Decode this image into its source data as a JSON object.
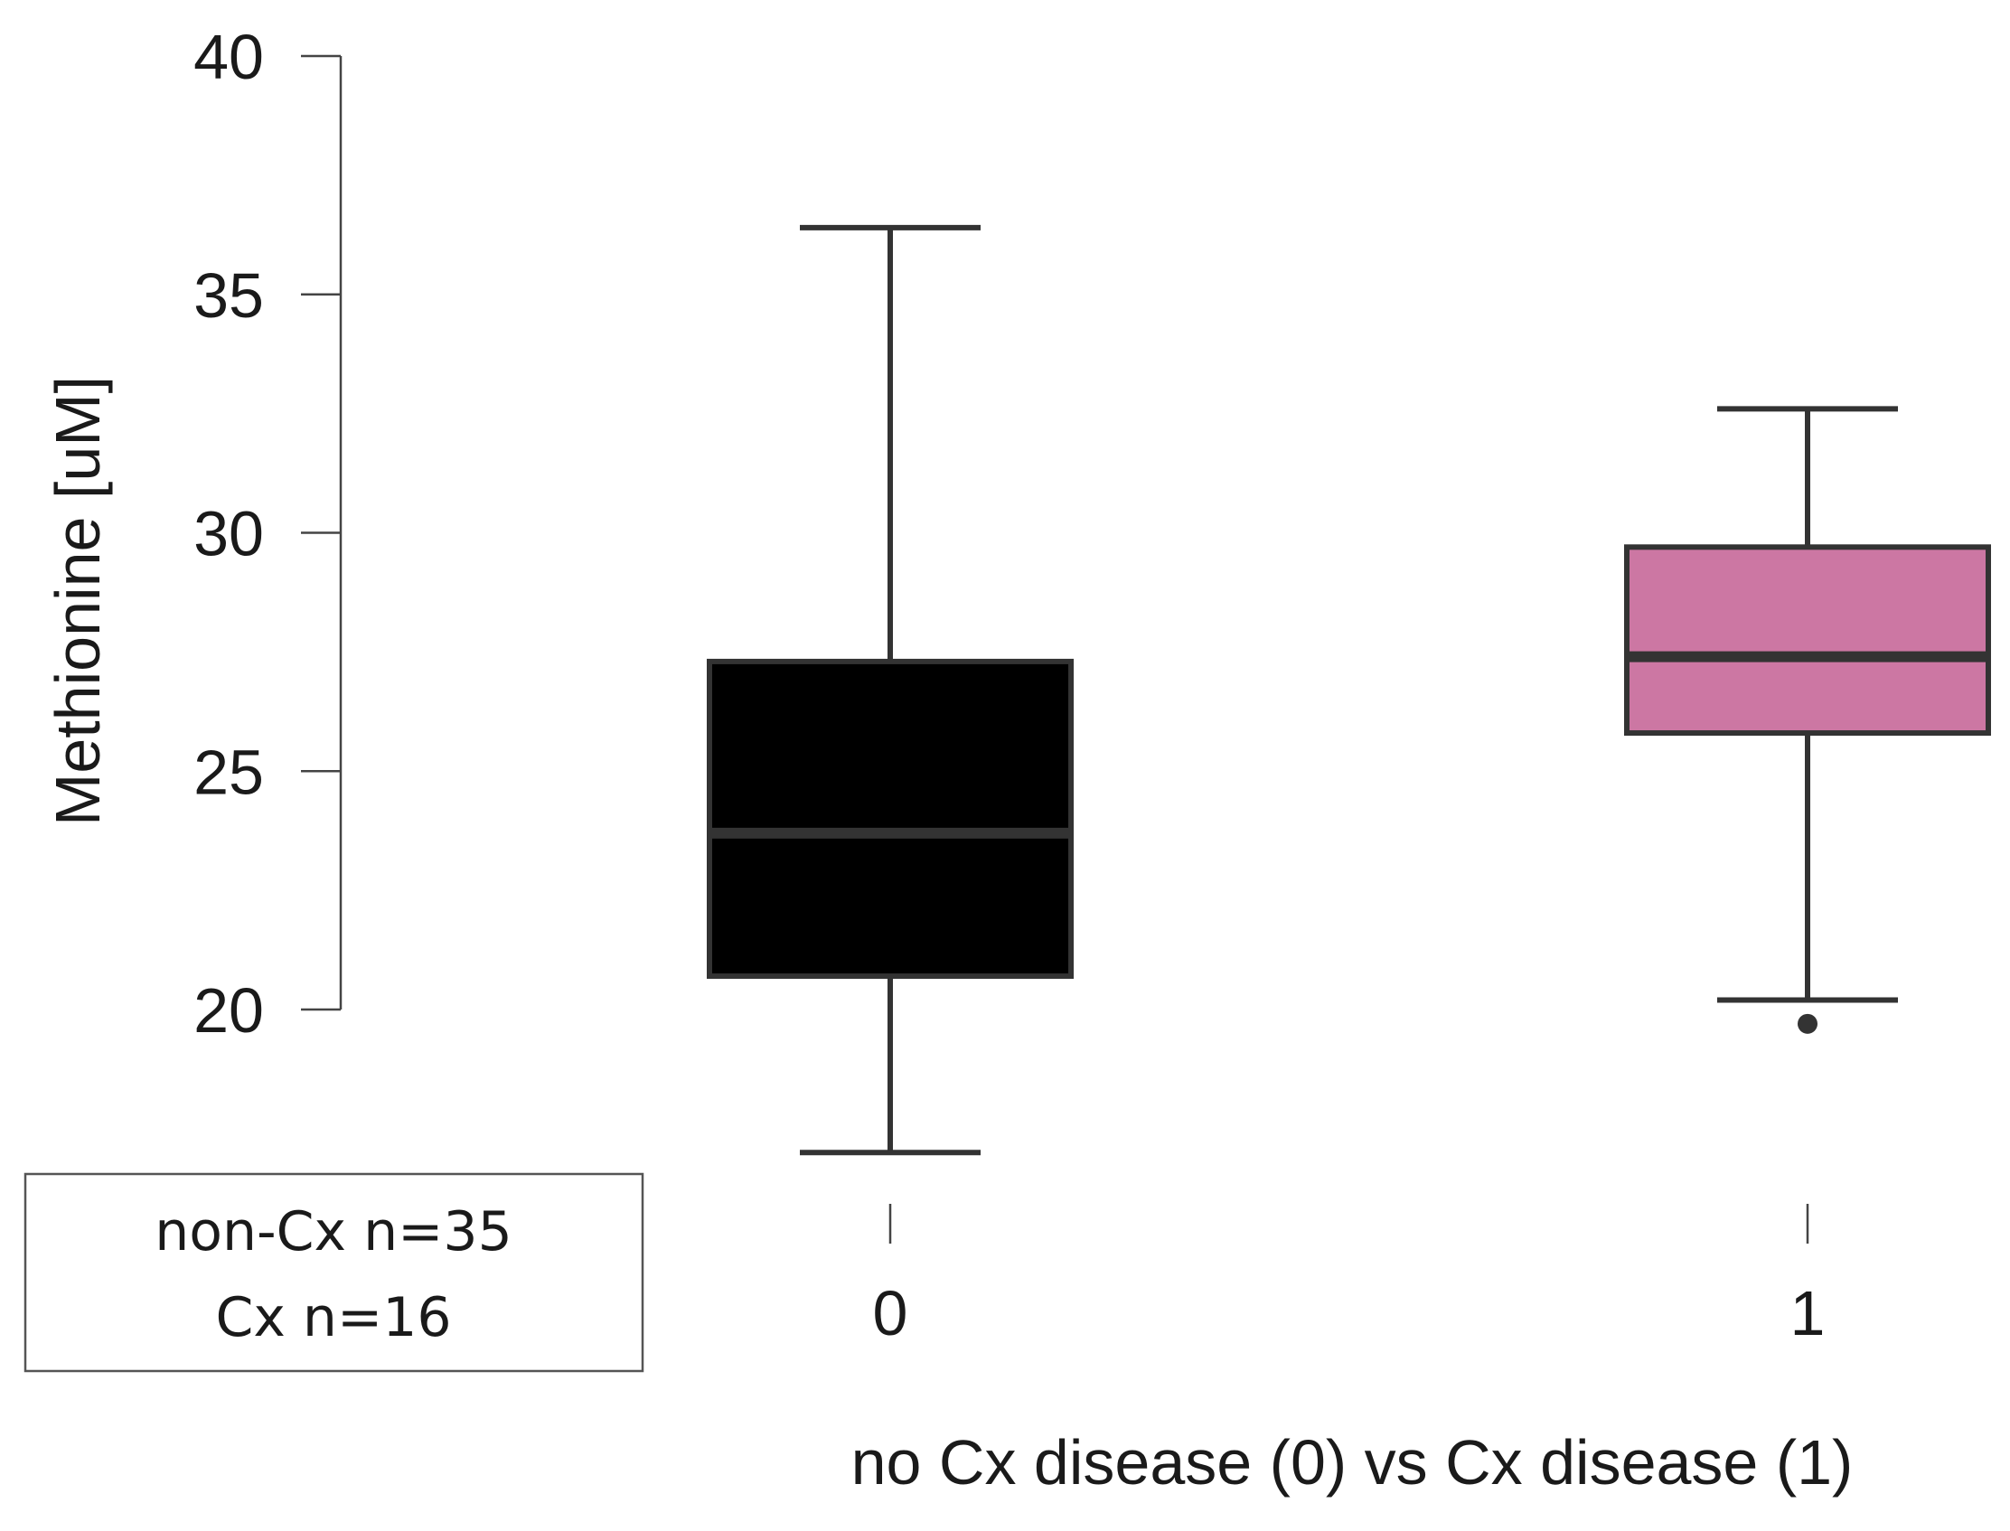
{
  "chart_data": {
    "type": "box",
    "title": "",
    "xlabel": "no Cx disease (0) vs Cx disease (1)",
    "ylabel": "Methionine   [uM]",
    "ylim": [
      20,
      40
    ],
    "yticks": [
      "40",
      "35",
      "30",
      "25",
      "20"
    ],
    "ytick_values": [
      40,
      35,
      30,
      25,
      20
    ],
    "categories": [
      "0",
      "1"
    ],
    "series": [
      {
        "category": "0",
        "min": 17.0,
        "q1": 20.7,
        "median": 23.7,
        "q3": 27.3,
        "max": 36.4,
        "outliers": [],
        "color": "#000000",
        "median_color": "#333333"
      },
      {
        "category": "1",
        "min": 20.2,
        "q1": 25.8,
        "median": 27.4,
        "q3": 29.7,
        "max": 32.6,
        "outliers": [
          19.7
        ],
        "color": "#cc77a3",
        "median_color": "#333333"
      }
    ],
    "legend": {
      "position": "bottom-left",
      "lines": [
        "non-Cx n=35",
        "Cx n=16"
      ]
    },
    "grid": false
  }
}
